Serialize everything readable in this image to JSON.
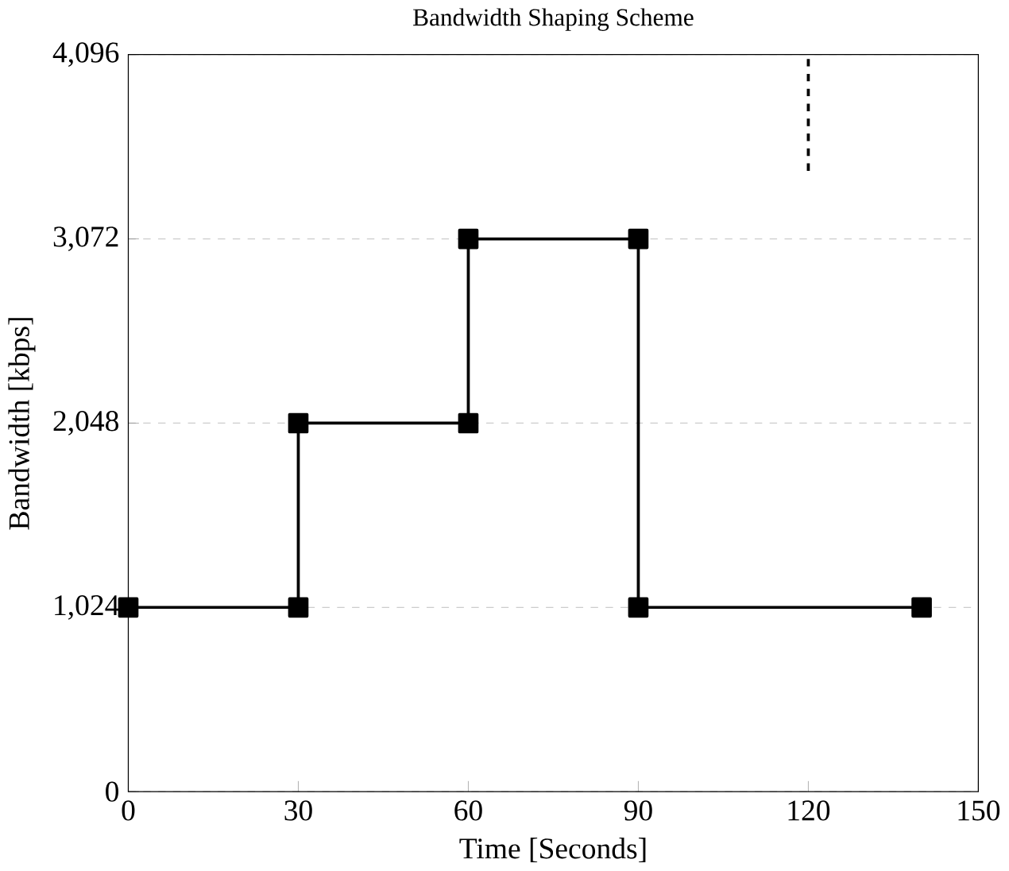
{
  "chart_data": {
    "type": "line",
    "title": "Bandwidth Shaping Scheme",
    "xlabel": "Time [Seconds]",
    "ylabel": "Bandwidth [kbps]",
    "xlim": [
      0,
      150
    ],
    "xticks": [
      0,
      30,
      60,
      90,
      120,
      150
    ],
    "ylim": [
      0,
      4096
    ],
    "yticks": [
      0,
      {
        "value": 1024,
        "label": "1,024"
      },
      {
        "value": 2048,
        "label": "2,048"
      },
      {
        "value": 3072,
        "label": "3,072"
      },
      {
        "value": 4096,
        "label": "4,096"
      }
    ],
    "grid": "y",
    "series": [
      {
        "color": "#000000",
        "marker": "square",
        "line_style": "solid",
        "x": [
          0,
          30,
          30,
          60,
          60,
          90,
          90,
          140
        ],
        "values": [
          1024,
          1024,
          2048,
          2048,
          3072,
          3072,
          1024,
          1024
        ]
      },
      {
        "color": "#000000",
        "marker": "none",
        "line_style": "dashed",
        "x": [
          120,
          120
        ],
        "values": [
          3450,
          4096
        ]
      }
    ]
  }
}
